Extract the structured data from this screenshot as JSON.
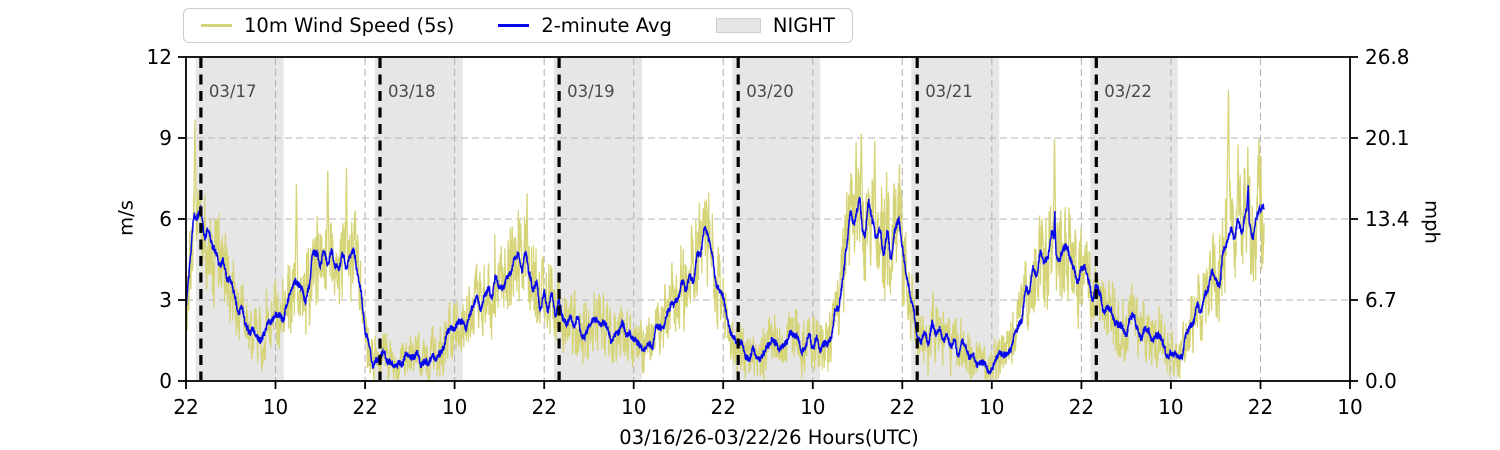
{
  "legend": {
    "items": [
      {
        "label": "10m Wind Speed (5s)",
        "swatch": "line",
        "color": "#d6d478"
      },
      {
        "label": "2-minute Avg",
        "swatch": "line",
        "color": "#0808ee"
      },
      {
        "label": "NIGHT",
        "swatch": "patch",
        "color": "#e6e6e6"
      }
    ]
  },
  "axes": {
    "left": {
      "label": "m/s",
      "ticks": [
        "0",
        "3",
        "6",
        "9",
        "12"
      ]
    },
    "right": {
      "label": "mph",
      "ticks": [
        "0.0",
        "6.7",
        "13.4",
        "20.1",
        "26.8"
      ]
    },
    "x": {
      "label": "03/16/26-03/22/26  Hours(UTC)",
      "tick_hours": [
        0,
        12,
        24,
        36,
        48,
        60,
        72,
        84,
        96,
        108,
        120,
        132,
        144,
        156
      ],
      "tick_labels": [
        "22",
        "10",
        "22",
        "10",
        "22",
        "10",
        "22",
        "10",
        "22",
        "10",
        "22",
        "10",
        "22",
        "10"
      ]
    }
  },
  "colors": {
    "wind5s": "#d6d478",
    "avg2m": "#0808ee",
    "night": "#e6e6e6",
    "grid": "#b5b5b5",
    "axis": "#000000",
    "date_label": "#4a4a4a",
    "legend_border": "#cccccc"
  },
  "chart_data": {
    "type": "line",
    "title": "",
    "xlabel": "03/16/26-03/22/26  Hours(UTC)",
    "ylabel_left": "m/s",
    "ylabel_right": "mph",
    "x_start": "03/16/26 22:00 UTC",
    "x_end_axis": "03/23/26 10:00 UTC",
    "x_span_hours": 156,
    "data_end_hour": 144.5,
    "ylim_ms": [
      0,
      12
    ],
    "ylim_mph": [
      0,
      26.8
    ],
    "yticks_ms": [
      0,
      3,
      6,
      9,
      12
    ],
    "ytick_labels_mph": [
      "0.0",
      "6.7",
      "13.4",
      "20.1",
      "26.8"
    ],
    "grid": true,
    "legend_position": "top-left",
    "night_bands_hours": [
      [
        1.3,
        13.1
      ],
      [
        25.3,
        37.1
      ],
      [
        49.3,
        61.1
      ],
      [
        73.2,
        85.0
      ],
      [
        97.2,
        109.0
      ],
      [
        121.2,
        132.9
      ]
    ],
    "midnight_lines": [
      {
        "hour": 2,
        "label": "03/17"
      },
      {
        "hour": 26,
        "label": "03/18"
      },
      {
        "hour": 50,
        "label": "03/19"
      },
      {
        "hour": 74,
        "label": "03/20"
      },
      {
        "hour": 98,
        "label": "03/21"
      },
      {
        "hour": 122,
        "label": "03/22"
      }
    ],
    "series": [
      {
        "name": "10m Wind Speed (5s)",
        "color": "#d6d478",
        "kind": "raw-5s-noisy",
        "sample_step_hours": 0.026,
        "noise": {
          "seed": 77,
          "base_amp": 0.55,
          "amp_per_ms": 0.2
        }
      },
      {
        "name": "2-minute Avg",
        "color": "#0808ee",
        "kind": "2-minute-average",
        "sample_step_hours": 0.0333,
        "avg_control_points": {
          "t_hours": [
            0,
            0.5,
            1,
            1.5,
            2,
            2.5,
            3,
            4,
            5,
            6,
            7,
            8,
            9,
            10,
            11,
            12,
            13,
            14,
            15,
            16,
            17,
            18,
            19,
            20,
            21,
            22,
            22.5,
            23,
            23.5,
            24,
            24.5,
            25,
            26,
            27,
            28,
            29,
            30,
            31,
            32,
            33,
            34,
            35,
            36,
            37,
            38,
            39,
            40,
            41,
            42,
            43,
            44,
            44.5,
            45,
            46,
            47,
            48,
            49,
            50,
            51,
            52,
            53,
            54,
            55,
            56,
            57,
            58,
            59,
            60,
            61,
            62,
            63,
            64,
            65,
            66,
            67,
            68,
            69,
            69.5,
            70,
            70.5,
            71,
            71.5,
            72,
            72.5,
            73,
            74,
            75,
            76,
            77,
            78,
            79,
            80,
            81,
            82,
            83,
            84,
            85,
            86,
            87,
            88,
            89,
            89.5,
            90,
            90.35,
            90.7,
            91,
            91.5,
            92,
            92.5,
            93,
            93.5,
            94,
            94.5,
            95,
            95.5,
            96,
            96.3,
            96.7,
            97,
            97.3,
            97.7,
            98,
            99,
            100,
            101,
            102,
            103,
            104,
            105,
            106,
            107,
            108,
            109,
            110,
            111,
            112,
            113,
            114,
            115,
            116,
            116.3,
            116.45,
            116.6,
            117,
            118,
            119,
            120,
            121,
            122,
            123,
            124,
            125,
            126,
            127,
            128,
            129,
            130,
            131,
            132,
            133,
            134,
            135,
            136,
            137,
            138,
            139,
            140,
            141,
            142,
            142.2,
            142.35,
            142.5,
            143,
            143.5,
            144,
            144.5
          ],
          "v_ms": [
            3.2,
            4.8,
            6.0,
            7.1,
            6.9,
            6.2,
            5.7,
            4.9,
            4.1,
            3.2,
            2.5,
            2.0,
            1.85,
            1.8,
            2.0,
            2.4,
            2.8,
            3.4,
            3.8,
            3.5,
            4.1,
            4.4,
            4.2,
            4.5,
            4.3,
            4.6,
            4.4,
            3.7,
            2.9,
            2.1,
            1.3,
            0.9,
            0.7,
            0.85,
            0.6,
            0.9,
            0.75,
            0.7,
            0.85,
            1.0,
            1.3,
            1.6,
            1.9,
            2.2,
            2.4,
            2.7,
            3.0,
            3.3,
            3.6,
            3.9,
            4.3,
            4.6,
            4.4,
            4.0,
            3.6,
            3.2,
            2.9,
            2.7,
            2.5,
            2.35,
            2.2,
            2.1,
            2.0,
            1.9,
            1.8,
            1.7,
            1.6,
            1.45,
            1.3,
            1.4,
            1.7,
            2.2,
            2.8,
            3.4,
            4.0,
            4.6,
            5.1,
            5.3,
            4.8,
            4.2,
            3.6,
            3.0,
            2.5,
            2.0,
            1.6,
            1.2,
            1.1,
            1.2,
            1.0,
            1.3,
            1.1,
            1.2,
            1.4,
            1.2,
            1.3,
            1.5,
            1.4,
            1.8,
            2.8,
            4.3,
            5.3,
            6.0,
            5.6,
            6.9,
            5.8,
            5.6,
            5.9,
            5.4,
            6.0,
            5.5,
            5.8,
            5.4,
            5.3,
            5.2,
            5.6,
            5.1,
            4.6,
            3.8,
            3.2,
            2.6,
            2.1,
            1.8,
            1.5,
            1.7,
            1.4,
            1.6,
            1.3,
            1.0,
            0.8,
            0.6,
            0.5,
            0.7,
            1.0,
            1.5,
            2.0,
            2.6,
            3.3,
            3.9,
            4.4,
            4.8,
            5.2,
            6.6,
            5.1,
            5.0,
            5.2,
            4.8,
            4.4,
            3.9,
            3.4,
            2.9,
            2.5,
            2.2,
            2.0,
            2.1,
            1.9,
            2.0,
            1.7,
            1.2,
            0.8,
            1.0,
            1.6,
            2.2,
            2.7,
            3.2,
            3.8,
            4.4,
            4.8,
            5.2,
            5.8,
            6.2,
            7.4,
            6.0,
            5.9,
            6.1,
            5.7,
            5.9
          ]
        }
      }
    ],
    "gust_spikes": [
      [
        1.2,
        9.8
      ],
      [
        14.8,
        7.6
      ],
      [
        19,
        8.3
      ],
      [
        21.5,
        8.0
      ],
      [
        45.7,
        7.4
      ],
      [
        68.8,
        7.0
      ],
      [
        89.8,
        9.0
      ],
      [
        90.5,
        9.7
      ],
      [
        92.3,
        9.2
      ],
      [
        116.4,
        9.3
      ],
      [
        139.7,
        11.1
      ],
      [
        141,
        9.0
      ],
      [
        142.3,
        8.9
      ],
      [
        143.8,
        9.4
      ]
    ]
  }
}
